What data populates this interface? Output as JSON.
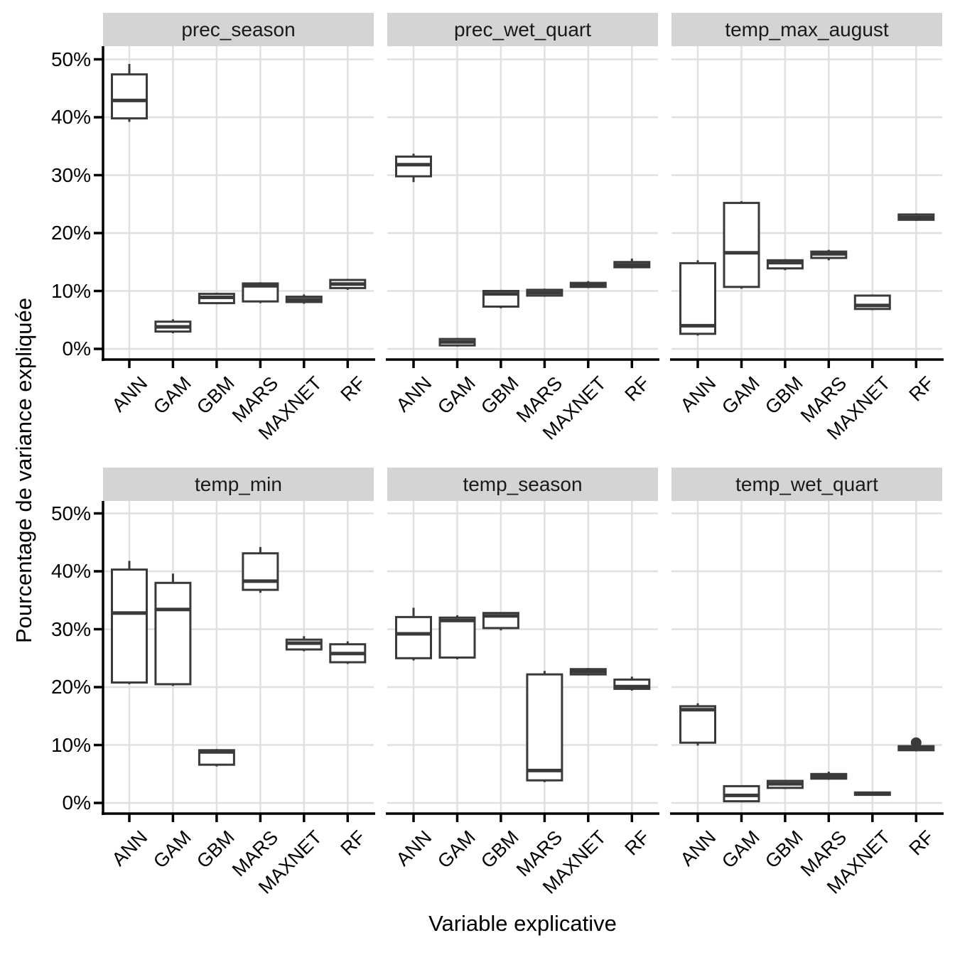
{
  "colors": {
    "box_stroke": "#3a3a3a",
    "box_fill": "#ffffff",
    "strip_bg": "#d4d4d4",
    "grid": "#e0e0e0",
    "axis": "#000000",
    "text": "#000000"
  },
  "chart_data": {
    "type": "boxplot",
    "facets": "2 rows x 3 columns",
    "legend": "none",
    "grid": "major-only",
    "x_label": "Variable explicative",
    "y_label": "Pourcentage de variance expliquée",
    "categories": [
      "ANN",
      "GAM",
      "GBM",
      "MARS",
      "MAXNET",
      "RF"
    ],
    "y_ticks": [
      {
        "value": 0,
        "label": "0%"
      },
      {
        "value": 10,
        "label": "10%"
      },
      {
        "value": 20,
        "label": "20%"
      },
      {
        "value": 30,
        "label": "30%"
      },
      {
        "value": 40,
        "label": "40%"
      },
      {
        "value": 50,
        "label": "50%"
      }
    ],
    "y_range_pct": [
      0,
      50
    ],
    "panels": [
      {
        "title": "prec_season",
        "stats": [
          {
            "model": "ANN",
            "lo": 39.2,
            "q1": 39.8,
            "med": 42.9,
            "q3": 47.4,
            "hi": 49.2,
            "outliers": []
          },
          {
            "model": "GAM",
            "lo": 2.7,
            "q1": 3.0,
            "med": 3.8,
            "q3": 4.7,
            "hi": 5.1,
            "outliers": []
          },
          {
            "model": "GBM",
            "lo": 7.7,
            "q1": 7.9,
            "med": 8.9,
            "q3": 9.5,
            "hi": 9.7,
            "outliers": []
          },
          {
            "model": "MARS",
            "lo": 7.9,
            "q1": 8.2,
            "med": 10.9,
            "q3": 11.3,
            "hi": 11.5,
            "outliers": []
          },
          {
            "model": "MAXNET",
            "lo": 7.8,
            "q1": 8.1,
            "med": 8.5,
            "q3": 9.0,
            "hi": 9.4,
            "outliers": []
          },
          {
            "model": "RF",
            "lo": 10.2,
            "q1": 10.5,
            "med": 11.2,
            "q3": 11.9,
            "hi": 12.1,
            "outliers": []
          }
        ]
      },
      {
        "title": "prec_wet_quart",
        "stats": [
          {
            "model": "ANN",
            "lo": 28.8,
            "q1": 29.8,
            "med": 31.8,
            "q3": 33.2,
            "hi": 33.7,
            "outliers": []
          },
          {
            "model": "GAM",
            "lo": 0.4,
            "q1": 0.6,
            "med": 1.2,
            "q3": 1.7,
            "hi": 1.9,
            "outliers": []
          },
          {
            "model": "GBM",
            "lo": 7.0,
            "q1": 7.3,
            "med": 9.5,
            "q3": 10.0,
            "hi": 10.2,
            "outliers": []
          },
          {
            "model": "MARS",
            "lo": 9.0,
            "q1": 9.2,
            "med": 9.7,
            "q3": 10.2,
            "hi": 10.4,
            "outliers": []
          },
          {
            "model": "MAXNET",
            "lo": 10.5,
            "q1": 10.7,
            "med": 11.1,
            "q3": 11.4,
            "hi": 11.7,
            "outliers": []
          },
          {
            "model": "RF",
            "lo": 13.9,
            "q1": 14.1,
            "med": 14.5,
            "q3": 15.0,
            "hi": 15.6,
            "outliers": []
          }
        ]
      },
      {
        "title": "temp_max_august",
        "stats": [
          {
            "model": "ANN",
            "lo": 2.3,
            "q1": 2.6,
            "med": 4.0,
            "q3": 14.8,
            "hi": 15.3,
            "outliers": []
          },
          {
            "model": "GAM",
            "lo": 10.4,
            "q1": 10.7,
            "med": 16.6,
            "q3": 25.2,
            "hi": 25.5,
            "outliers": []
          },
          {
            "model": "GBM",
            "lo": 13.6,
            "q1": 13.9,
            "med": 14.9,
            "q3": 15.3,
            "hi": 15.5,
            "outliers": []
          },
          {
            "model": "MARS",
            "lo": 15.3,
            "q1": 15.7,
            "med": 16.4,
            "q3": 16.8,
            "hi": 17.1,
            "outliers": []
          },
          {
            "model": "MAXNET",
            "lo": 6.7,
            "q1": 6.9,
            "med": 7.5,
            "q3": 9.2,
            "hi": 9.4,
            "outliers": []
          },
          {
            "model": "RF",
            "lo": 22.1,
            "q1": 22.3,
            "med": 22.7,
            "q3": 23.2,
            "hi": 23.4,
            "outliers": []
          }
        ]
      },
      {
        "title": "temp_min",
        "stats": [
          {
            "model": "ANN",
            "lo": 20.5,
            "q1": 20.8,
            "med": 32.8,
            "q3": 40.3,
            "hi": 41.8,
            "outliers": []
          },
          {
            "model": "GAM",
            "lo": 20.2,
            "q1": 20.5,
            "med": 33.4,
            "q3": 38.0,
            "hi": 39.6,
            "outliers": []
          },
          {
            "model": "GBM",
            "lo": 6.3,
            "q1": 6.6,
            "med": 8.8,
            "q3": 9.1,
            "hi": 9.3,
            "outliers": []
          },
          {
            "model": "MARS",
            "lo": 36.3,
            "q1": 36.8,
            "med": 38.3,
            "q3": 43.1,
            "hi": 44.2,
            "outliers": []
          },
          {
            "model": "MAXNET",
            "lo": 26.2,
            "q1": 26.5,
            "med": 27.6,
            "q3": 28.2,
            "hi": 28.8,
            "outliers": []
          },
          {
            "model": "RF",
            "lo": 24.0,
            "q1": 24.3,
            "med": 25.8,
            "q3": 27.4,
            "hi": 27.9,
            "outliers": []
          }
        ]
      },
      {
        "title": "temp_season",
        "stats": [
          {
            "model": "ANN",
            "lo": 24.6,
            "q1": 25.0,
            "med": 29.2,
            "q3": 32.1,
            "hi": 33.7,
            "outliers": []
          },
          {
            "model": "GAM",
            "lo": 24.8,
            "q1": 25.1,
            "med": 31.5,
            "q3": 32.0,
            "hi": 32.4,
            "outliers": []
          },
          {
            "model": "GBM",
            "lo": 29.8,
            "q1": 30.2,
            "med": 32.3,
            "q3": 32.8,
            "hi": 32.9,
            "outliers": []
          },
          {
            "model": "MARS",
            "lo": 3.6,
            "q1": 3.9,
            "med": 5.6,
            "q3": 22.2,
            "hi": 22.8,
            "outliers": []
          },
          {
            "model": "MAXNET",
            "lo": 22.0,
            "q1": 22.2,
            "med": 22.7,
            "q3": 23.1,
            "hi": 23.3,
            "outliers": []
          },
          {
            "model": "RF",
            "lo": 19.4,
            "q1": 19.7,
            "med": 20.1,
            "q3": 21.3,
            "hi": 21.8,
            "outliers": []
          }
        ]
      },
      {
        "title": "temp_wet_quart",
        "stats": [
          {
            "model": "ANN",
            "lo": 9.9,
            "q1": 10.4,
            "med": 16.1,
            "q3": 16.7,
            "hi": 17.2,
            "outliers": []
          },
          {
            "model": "GAM",
            "lo": 0.1,
            "q1": 0.3,
            "med": 1.3,
            "q3": 2.9,
            "hi": 3.0,
            "outliers": []
          },
          {
            "model": "GBM",
            "lo": 2.4,
            "q1": 2.6,
            "med": 3.3,
            "q3": 3.8,
            "hi": 3.9,
            "outliers": []
          },
          {
            "model": "MARS",
            "lo": 4.0,
            "q1": 4.2,
            "med": 4.6,
            "q3": 5.0,
            "hi": 5.4,
            "outliers": []
          },
          {
            "model": "MAXNET",
            "lo": 1.3,
            "q1": 1.4,
            "med": 1.6,
            "q3": 1.8,
            "hi": 1.9,
            "outliers": []
          },
          {
            "model": "RF",
            "lo": 8.9,
            "q1": 9.1,
            "med": 9.5,
            "q3": 9.8,
            "hi": 9.9,
            "outliers": [
              10.4
            ]
          }
        ]
      }
    ]
  }
}
